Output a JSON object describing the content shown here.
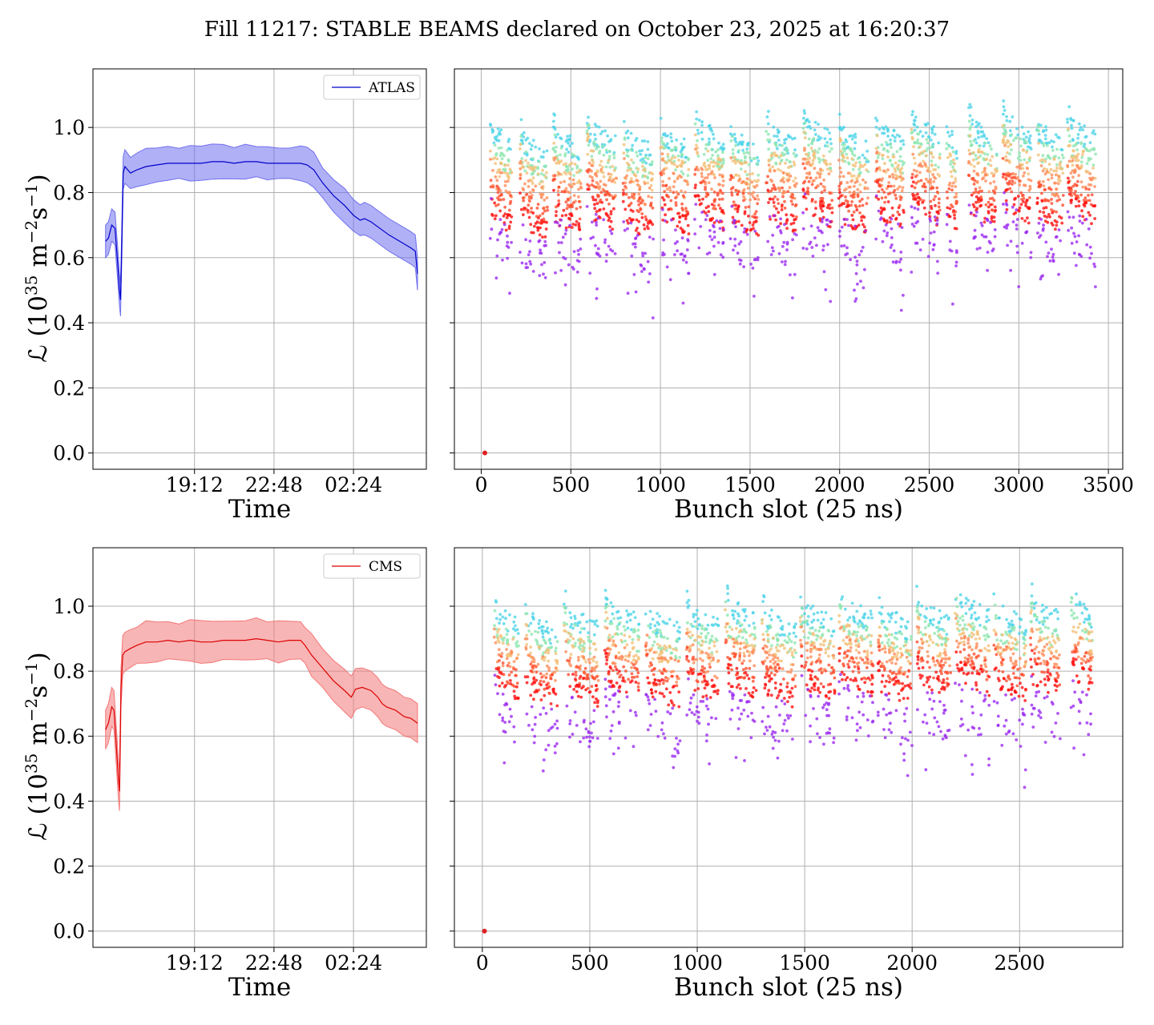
{
  "suptitle": "Fill 11217: STABLE BEAMS declared on October 23, 2025 at 16:20:37",
  "ylabel_main": "ℒ (10",
  "ylabel_exp1": "35",
  "ylabel_mid": " m",
  "ylabel_exp2": "−2",
  "ylabel_mid2": "s",
  "ylabel_exp3": "−1",
  "ylabel_end": ")",
  "chart_data": [
    {
      "id": "atlas-time",
      "type": "line",
      "xlabel": "Time",
      "ylabel": "ℒ (10^35 m^-2 s^-1)",
      "xlim": [
        14.6,
        29.7
      ],
      "ylim": [
        -0.05,
        1.18
      ],
      "xticks": [
        {
          "value": 19.2,
          "label": "19:12"
        },
        {
          "value": 22.8,
          "label": "22:48"
        },
        {
          "value": 26.4,
          "label": "02:24"
        }
      ],
      "yticks": [
        {
          "value": 0.0,
          "label": "0.0"
        },
        {
          "value": 0.2,
          "label": "0.2"
        },
        {
          "value": 0.4,
          "label": "0.4"
        },
        {
          "value": 0.6,
          "label": "0.6"
        },
        {
          "value": 0.8,
          "label": "0.8"
        },
        {
          "value": 1.0,
          "label": "1.0"
        }
      ],
      "grid": true,
      "legend": {
        "placement": "top-right",
        "entries": [
          {
            "name": "ATLAS",
            "color": "#0000cc"
          }
        ]
      },
      "series": [
        {
          "name": "ATLAS",
          "color": "#0000cc",
          "band_color": "#7070ee",
          "band_width": 0.05,
          "points": [
            [
              15.17,
              0.65
            ],
            [
              15.3,
              0.66
            ],
            [
              15.45,
              0.7
            ],
            [
              15.6,
              0.69
            ],
            [
              15.72,
              0.58
            ],
            [
              15.8,
              0.5
            ],
            [
              15.85,
              0.47
            ],
            [
              15.9,
              0.62
            ],
            [
              15.97,
              0.86
            ],
            [
              16.05,
              0.88
            ],
            [
              16.3,
              0.86
            ],
            [
              16.6,
              0.87
            ],
            [
              17.0,
              0.88
            ],
            [
              17.5,
              0.885
            ],
            [
              18.0,
              0.89
            ],
            [
              18.5,
              0.89
            ],
            [
              19.0,
              0.89
            ],
            [
              19.5,
              0.89
            ],
            [
              20.0,
              0.895
            ],
            [
              20.5,
              0.895
            ],
            [
              21.0,
              0.89
            ],
            [
              21.5,
              0.895
            ],
            [
              22.0,
              0.895
            ],
            [
              22.5,
              0.89
            ],
            [
              23.0,
              0.89
            ],
            [
              23.5,
              0.89
            ],
            [
              24.0,
              0.89
            ],
            [
              24.3,
              0.885
            ],
            [
              24.6,
              0.87
            ],
            [
              25.0,
              0.83
            ],
            [
              25.5,
              0.79
            ],
            [
              26.0,
              0.76
            ],
            [
              26.4,
              0.73
            ],
            [
              26.7,
              0.715
            ],
            [
              26.9,
              0.72
            ],
            [
              27.2,
              0.71
            ],
            [
              27.6,
              0.69
            ],
            [
              28.0,
              0.67
            ],
            [
              28.5,
              0.65
            ],
            [
              29.0,
              0.63
            ],
            [
              29.2,
              0.62
            ],
            [
              29.3,
              0.55
            ]
          ]
        }
      ]
    },
    {
      "id": "atlas-bunch",
      "type": "scatter",
      "xlabel": "Bunch slot (25 ns)",
      "xlim": [
        -150,
        3580
      ],
      "ylim": [
        -0.05,
        1.18
      ],
      "xticks": [
        {
          "value": 0,
          "label": "0"
        },
        {
          "value": 500,
          "label": "500"
        },
        {
          "value": 1000,
          "label": "1000"
        },
        {
          "value": 1500,
          "label": "1500"
        },
        {
          "value": 2000,
          "label": "2000"
        },
        {
          "value": 2500,
          "label": "2500"
        },
        {
          "value": 3000,
          "label": "3000"
        },
        {
          "value": 3500,
          "label": "3500"
        }
      ],
      "yticks": [
        {
          "value": 0.0
        },
        {
          "value": 0.2
        },
        {
          "value": 0.4
        },
        {
          "value": 0.6
        },
        {
          "value": 0.8
        },
        {
          "value": 1.0
        }
      ],
      "grid": true,
      "colormap": "rainbow",
      "trains": [
        [
          50,
          170
        ],
        [
          215,
          370
        ],
        [
          400,
          560
        ],
        [
          590,
          755
        ],
        [
          790,
          960
        ],
        [
          1000,
          1160
        ],
        [
          1190,
          1355
        ],
        [
          1390,
          1550
        ],
        [
          1590,
          1760
        ],
        [
          1795,
          1960
        ],
        [
          1995,
          2160
        ],
        [
          2200,
          2360
        ],
        [
          2400,
          2560
        ],
        [
          2595,
          2655
        ],
        [
          2720,
          2880
        ],
        [
          2910,
          3070
        ],
        [
          3100,
          3250
        ],
        [
          3270,
          3430
        ]
      ],
      "pilot": {
        "x": 20,
        "y": 0.0
      },
      "levels": [
        {
          "color": "#4fd4e8",
          "y": 0.93
        },
        {
          "color": "#8ee6b0",
          "y": 0.88
        },
        {
          "color": "#f2c178",
          "y": 0.85
        },
        {
          "color": "#ff8c5a",
          "y": 0.8
        },
        {
          "color": "#ff4e2e",
          "y": 0.75
        },
        {
          "color": "#ff1010",
          "y": 0.7
        },
        {
          "color": "#9c2cf0",
          "y": 0.62
        }
      ]
    },
    {
      "id": "cms-time",
      "type": "line",
      "xlabel": "Time",
      "ylabel": "ℒ (10^35 m^-2 s^-1)",
      "xlim": [
        14.6,
        29.7
      ],
      "ylim": [
        -0.05,
        1.18
      ],
      "xticks": [
        {
          "value": 19.2,
          "label": "19:12"
        },
        {
          "value": 22.8,
          "label": "22:48"
        },
        {
          "value": 26.4,
          "label": "02:24"
        }
      ],
      "yticks": [
        {
          "value": 0.0,
          "label": "0.0"
        },
        {
          "value": 0.2,
          "label": "0.2"
        },
        {
          "value": 0.4,
          "label": "0.4"
        },
        {
          "value": 0.6,
          "label": "0.6"
        },
        {
          "value": 0.8,
          "label": "0.8"
        },
        {
          "value": 1.0,
          "label": "1.0"
        }
      ],
      "grid": true,
      "legend": {
        "placement": "top-right",
        "entries": [
          {
            "name": "CMS",
            "color": "#dd0000"
          }
        ]
      },
      "series": [
        {
          "name": "CMS",
          "color": "#dd0000",
          "band_color": "#f37878",
          "band_width": 0.06,
          "points": [
            [
              15.17,
              0.62
            ],
            [
              15.3,
              0.64
            ],
            [
              15.45,
              0.69
            ],
            [
              15.55,
              0.68
            ],
            [
              15.65,
              0.58
            ],
            [
              15.75,
              0.47
            ],
            [
              15.8,
              0.43
            ],
            [
              15.87,
              0.75
            ],
            [
              15.95,
              0.85
            ],
            [
              16.05,
              0.86
            ],
            [
              16.3,
              0.87
            ],
            [
              16.6,
              0.88
            ],
            [
              17.0,
              0.89
            ],
            [
              17.5,
              0.89
            ],
            [
              18.0,
              0.895
            ],
            [
              18.5,
              0.89
            ],
            [
              19.0,
              0.895
            ],
            [
              19.5,
              0.89
            ],
            [
              20.0,
              0.89
            ],
            [
              20.5,
              0.895
            ],
            [
              21.0,
              0.895
            ],
            [
              21.5,
              0.895
            ],
            [
              22.0,
              0.9
            ],
            [
              22.5,
              0.895
            ],
            [
              23.0,
              0.89
            ],
            [
              23.5,
              0.895
            ],
            [
              24.0,
              0.895
            ],
            [
              24.2,
              0.88
            ],
            [
              24.5,
              0.85
            ],
            [
              25.0,
              0.81
            ],
            [
              25.5,
              0.77
            ],
            [
              26.0,
              0.74
            ],
            [
              26.3,
              0.72
            ],
            [
              26.5,
              0.745
            ],
            [
              26.8,
              0.75
            ],
            [
              27.2,
              0.74
            ],
            [
              27.5,
              0.72
            ],
            [
              27.7,
              0.7
            ],
            [
              27.9,
              0.69
            ],
            [
              28.3,
              0.68
            ],
            [
              28.7,
              0.66
            ],
            [
              29.0,
              0.655
            ],
            [
              29.3,
              0.64
            ]
          ]
        }
      ]
    },
    {
      "id": "cms-bunch",
      "type": "scatter",
      "xlabel": "Bunch slot (25 ns)",
      "xlim": [
        -130,
        2980
      ],
      "ylim": [
        -0.05,
        1.18
      ],
      "xticks": [
        {
          "value": 0,
          "label": "0"
        },
        {
          "value": 500,
          "label": "500"
        },
        {
          "value": 1000,
          "label": "1000"
        },
        {
          "value": 1500,
          "label": "1500"
        },
        {
          "value": 2000,
          "label": "2000"
        },
        {
          "value": 2500,
          "label": "2500"
        }
      ],
      "yticks": [
        {
          "value": 0.0
        },
        {
          "value": 0.2
        },
        {
          "value": 0.4
        },
        {
          "value": 0.6
        },
        {
          "value": 0.8
        },
        {
          "value": 1.0
        }
      ],
      "grid": true,
      "colormap": "rainbow",
      "trains": [
        [
          55,
          170
        ],
        [
          200,
          350
        ],
        [
          380,
          540
        ],
        [
          570,
          730
        ],
        [
          760,
          920
        ],
        [
          950,
          1100
        ],
        [
          1130,
          1280
        ],
        [
          1300,
          1460
        ],
        [
          1480,
          1640
        ],
        [
          1660,
          1820
        ],
        [
          1840,
          2000
        ],
        [
          2020,
          2180
        ],
        [
          2200,
          2360
        ],
        [
          2380,
          2530
        ],
        [
          2550,
          2690
        ],
        [
          2740,
          2840
        ]
      ],
      "pilot": {
        "x": 10,
        "y": 0.0
      },
      "levels": [
        {
          "color": "#4fd4e8",
          "y": 0.93
        },
        {
          "color": "#8ee6b0",
          "y": 0.88
        },
        {
          "color": "#f2c178",
          "y": 0.85
        },
        {
          "color": "#ff8c5a",
          "y": 0.81
        },
        {
          "color": "#ff4e2e",
          "y": 0.77
        },
        {
          "color": "#ff1010",
          "y": 0.73
        },
        {
          "color": "#9c2cf0",
          "y": 0.63
        }
      ]
    }
  ]
}
